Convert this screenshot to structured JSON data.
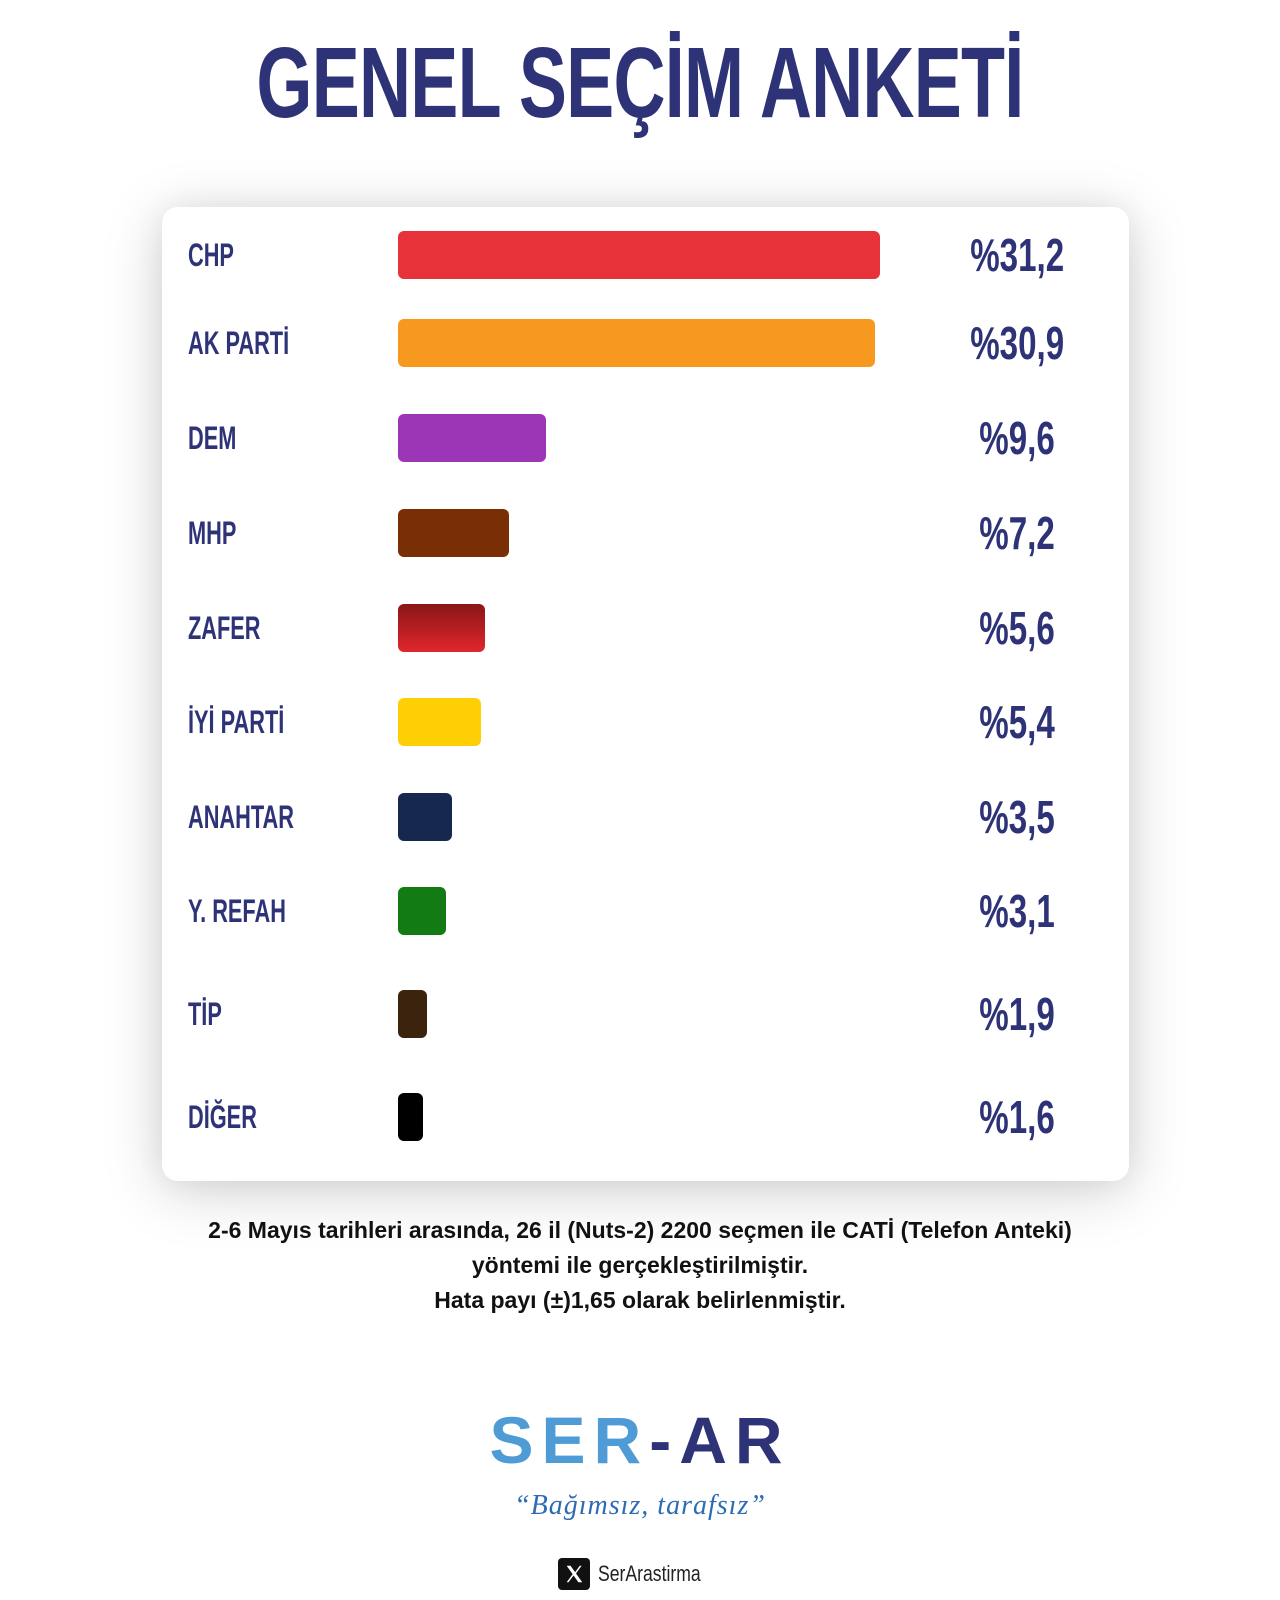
{
  "title": "GENEL SEÇİM ANKETİ",
  "chart_data": {
    "type": "bar",
    "orientation": "horizontal",
    "categories": [
      "CHP",
      "AK PARTİ",
      "DEM",
      "MHP",
      "ZAFER",
      "İYİ PARTİ",
      "ANAHTAR",
      "Y. REFAH",
      "TİP",
      "DİĞER"
    ],
    "values": [
      31.2,
      30.9,
      9.6,
      7.2,
      5.6,
      5.4,
      3.5,
      3.1,
      1.9,
      1.6
    ],
    "value_labels": [
      "%31,2",
      "%30,9",
      "%9,6",
      "%7,2",
      "%5,6",
      "%5,4",
      "%3,5",
      "%3,1",
      "%1,9",
      "%1,6"
    ],
    "colors": [
      "#e8323a",
      "#f7991f",
      "#9b37b6",
      "#7a2e05",
      "#c3242c",
      "#ffcf05",
      "#17284f",
      "#137b13",
      "#3b230d",
      "#000000"
    ],
    "title": "GENEL SEÇİM ANKETİ",
    "grid": false,
    "legend": "none"
  },
  "footnote": {
    "line1": "2-6 Mayıs tarihleri arasında, 26 il (Nuts-2) 2200 seçmen ile CATİ (Telefon Anteki)",
    "line2": "yöntemi ile gerçekleştirilmiştir.",
    "line3": "Hata payı (±)1,65 olarak belirlenmiştir."
  },
  "brand": {
    "logo_ser": "SER",
    "logo_dash": "-",
    "logo_ar": "AR",
    "slogan": "“Bağımsız, tarafsız”",
    "social_handle": "SerArastirma",
    "social_icon": "x-logo-icon",
    "colors": {
      "navy": "#2e3378",
      "light_blue": "#4f9bd5"
    }
  }
}
